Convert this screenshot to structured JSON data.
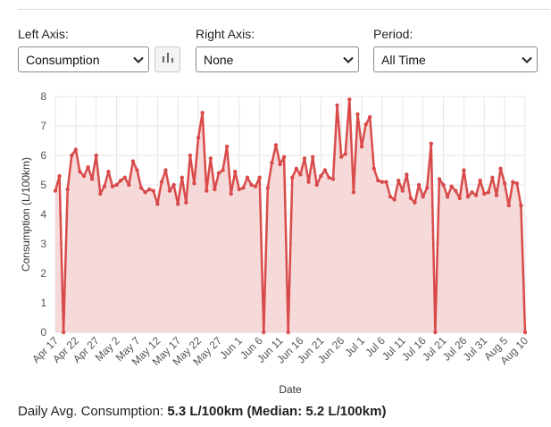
{
  "controls": {
    "left_axis": {
      "label": "Left Axis:",
      "value": "Consumption"
    },
    "chart_button_icon": "bar-chart-icon",
    "right_axis": {
      "label": "Right Axis:",
      "value": "None"
    },
    "period": {
      "label": "Period:",
      "value": "All Time"
    }
  },
  "summary": {
    "prefix": "Daily Avg. Consumption:",
    "avg": "5.3 L/100km",
    "median_open": "(Median:",
    "median": "5.2 L/100km",
    "median_close": ")"
  },
  "colors": {
    "line": "#d94b4b",
    "fill": "#f5d3d3",
    "grid": "#e6e6e6"
  },
  "chart_data": {
    "type": "area",
    "title": "",
    "xlabel": "Date",
    "ylabel": "Consumption (L/100km)",
    "ylim": [
      0,
      8
    ],
    "yticks": [
      0,
      1,
      2,
      3,
      4,
      5,
      6,
      7,
      8
    ],
    "x_start": "Apr 17",
    "x_tick_labels": [
      "Apr 17",
      "Apr 22",
      "Apr 27",
      "May 2",
      "May 7",
      "May 12",
      "May 17",
      "May 22",
      "May 27",
      "Jun 1",
      "Jun 6",
      "Jun 11",
      "Jun 16",
      "Jun 21",
      "Jun 26",
      "Jul 1",
      "Jul 6",
      "Jul 11",
      "Jul 16",
      "Jul 21",
      "Jul 26",
      "Jul 31",
      "Aug 5",
      "Aug 10"
    ],
    "grid": true,
    "series": [
      {
        "name": "Consumption",
        "values": [
          4.8,
          5.3,
          0,
          4.85,
          6.0,
          6.2,
          5.45,
          5.3,
          5.6,
          5.2,
          6.0,
          4.7,
          4.95,
          5.45,
          4.95,
          5.0,
          5.15,
          5.25,
          5.0,
          5.8,
          5.5,
          4.9,
          4.75,
          4.85,
          4.8,
          4.35,
          5.1,
          5.5,
          4.8,
          5.0,
          4.35,
          5.25,
          4.4,
          6.0,
          5.05,
          6.6,
          7.45,
          4.8,
          5.9,
          4.85,
          5.4,
          5.5,
          6.3,
          4.7,
          5.45,
          4.85,
          4.9,
          5.25,
          5.0,
          4.95,
          5.25,
          0,
          4.9,
          5.75,
          6.35,
          5.7,
          5.95,
          0,
          5.25,
          5.55,
          5.35,
          5.9,
          5.1,
          5.95,
          5.0,
          5.3,
          5.5,
          5.25,
          5.2,
          7.7,
          5.95,
          6.05,
          7.9,
          4.75,
          7.4,
          6.3,
          7.05,
          7.3,
          5.55,
          5.15,
          5.1,
          5.1,
          4.6,
          4.5,
          5.15,
          4.8,
          5.35,
          4.55,
          4.4,
          5.0,
          4.6,
          4.9,
          6.4,
          0,
          5.2,
          5.0,
          4.6,
          4.95,
          4.8,
          4.55,
          5.5,
          4.6,
          4.75,
          4.65,
          5.15,
          4.7,
          4.75,
          5.25,
          4.65,
          5.55,
          5.05,
          4.3,
          5.1,
          5.05,
          4.3,
          0
        ]
      }
    ]
  }
}
